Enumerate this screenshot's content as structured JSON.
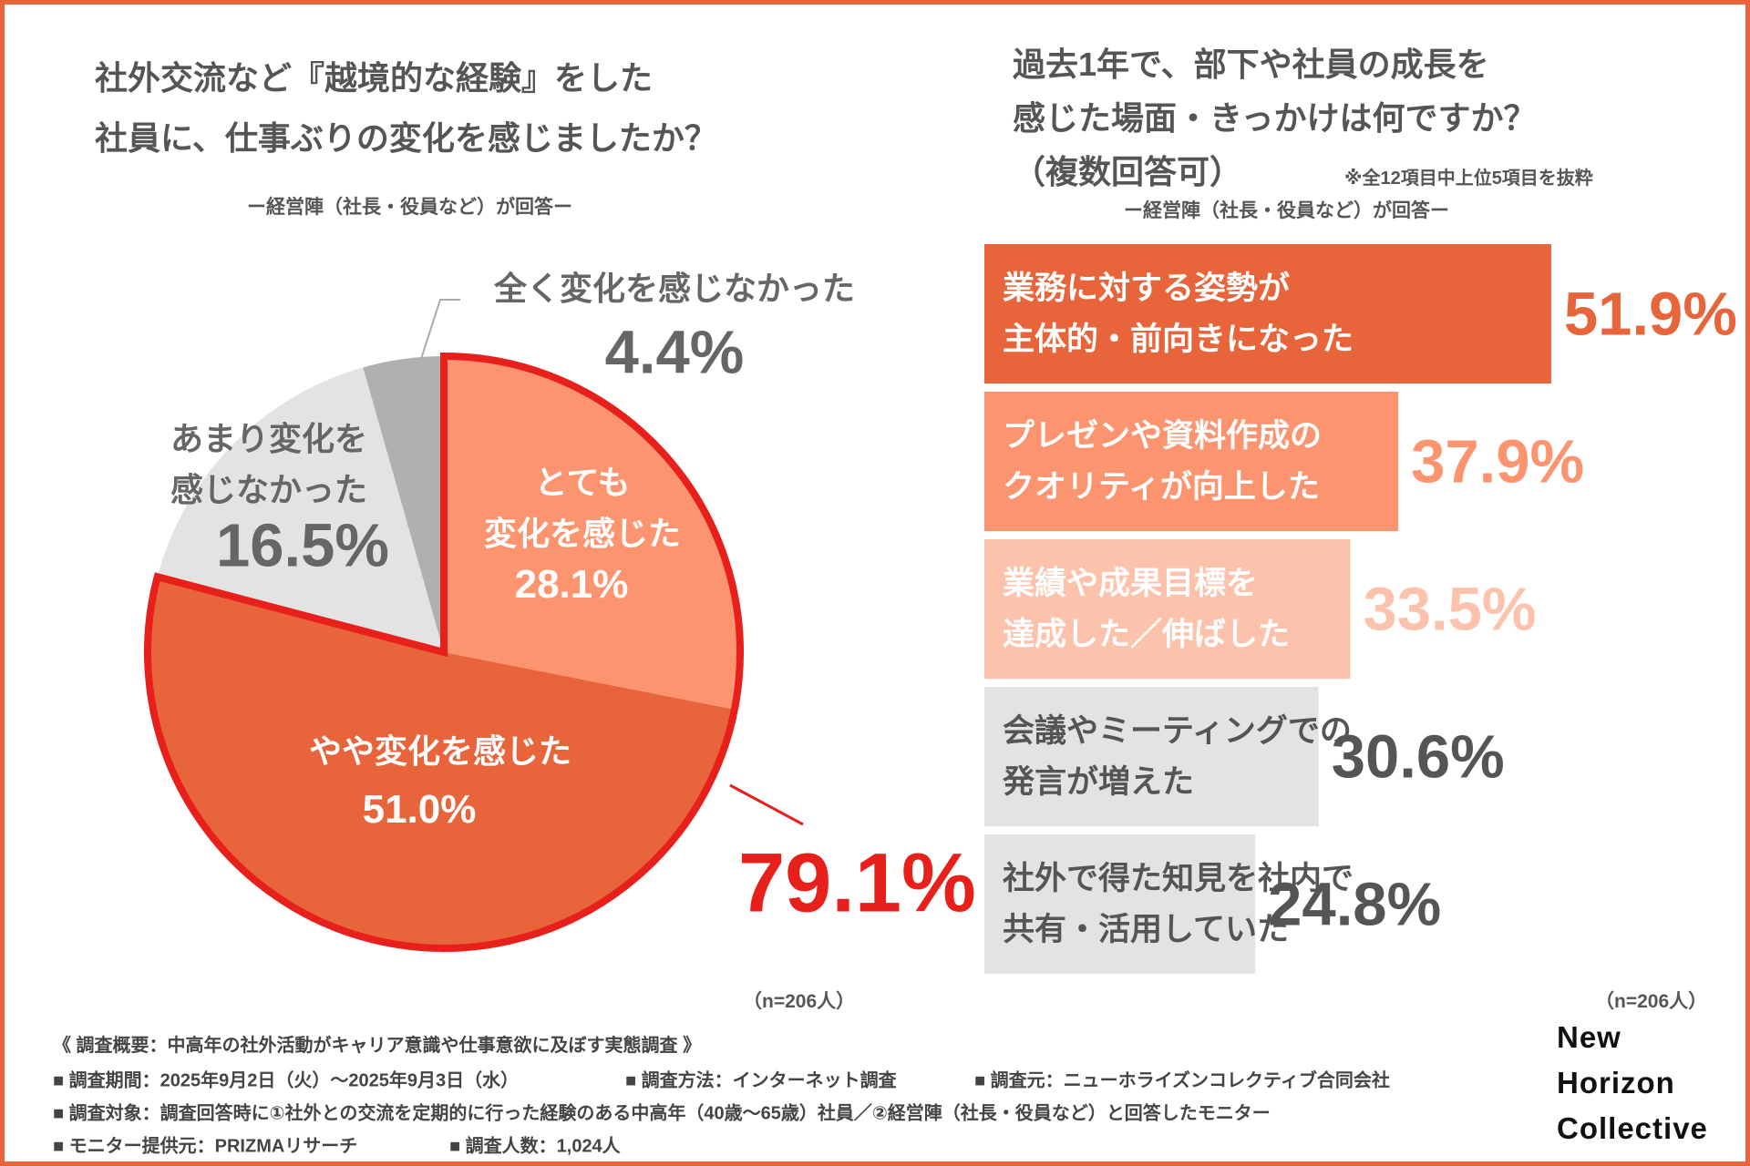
{
  "chart_data": [
    {
      "type": "pie",
      "title": "社外交流など『越境的な経験』をした\n社員に、仕事ぶりの変化を感じましたか？",
      "subtitle": "ー経営陣（社長・役員など）が回答ー",
      "categories": [
        "とても\n変化を感じた",
        "やや変化を感じた",
        "あまり変化を\n感じなかった",
        "全く変化を感じなかった"
      ],
      "values": [
        28.1,
        51.0,
        16.5,
        4.4
      ],
      "value_labels": [
        "28.1%",
        "51.0%",
        "16.5%",
        "4.4%"
      ],
      "colors": [
        "#fd9470",
        "#e8643a",
        "#e3e3e3",
        "#b0b0b0"
      ],
      "text_colors": [
        "#ffffff",
        "#ffffff",
        "#666666",
        "#666666"
      ],
      "highlight": {
        "value": 79.1,
        "label": "79.1%"
      },
      "note": "（n=206人）"
    },
    {
      "type": "hbar",
      "title": "過去1年で、部下や社員の成長を\n感じた場面・きっかけは何ですか？\n（複数回答可）",
      "note_top": "※全12項目中上位5項目を抜粋",
      "subtitle": "ー経営陣（社長・役員など）が回答ー",
      "categories": [
        "業務に対する姿勢が\n主体的・前向きになった",
        "プレゼンや資料作成の\nクオリティが向上した",
        "業績や成果目標を\n達成した／伸ばした",
        "会議やミーティングでの\n発言が増えた",
        "社外で得た知見を社内で\n共有・活用していた"
      ],
      "values": [
        51.9,
        37.9,
        33.5,
        30.6,
        24.8
      ],
      "value_labels": [
        "51.9%",
        "37.9%",
        "33.5%",
        "30.6%",
        "24.8%"
      ],
      "colors": [
        "#e8643a",
        "#fd9470",
        "#fcc2ab",
        "#e3e3e3",
        "#e3e3e3"
      ],
      "text_colors": [
        "#ffffff",
        "#ffffff",
        "#ffffff",
        "#555555",
        "#555555"
      ],
      "value_colors": [
        "#e8643a",
        "#fd9470",
        "#fcc2ab",
        "#555555",
        "#555555"
      ],
      "xlim": [
        0,
        60
      ],
      "note": "（n=206人）"
    }
  ],
  "footer": {
    "heading": "《 調査概要：中高年の社外活動がキャリア意識や仕事意欲に及ぼす実態調査 》",
    "rows": [
      [
        "■ 調査期間：2025年9月2日（火）〜2025年9月3日（水）",
        "■ 調査方法：インターネット調査",
        "■ 調査元：ニューホライズンコレクティブ合同会社"
      ],
      [
        "■ 調査対象：調査回答時に①社外との交流を定期的に行った経験のある中高年（40歳〜65歳）社員／②経営陣（社長・役員など）と回答したモニター"
      ],
      [
        "■ モニター提供元：PRIZMAリサーチ",
        "■ 調査人数：1,024人"
      ]
    ]
  },
  "logo": [
    "New",
    "Horizon",
    "Collective"
  ]
}
